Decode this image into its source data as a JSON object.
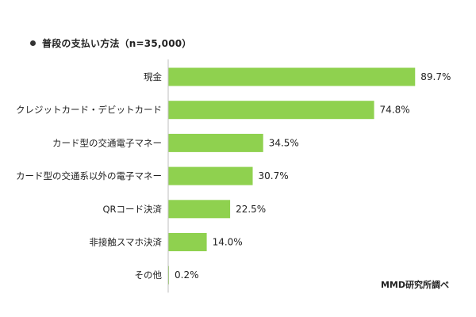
{
  "chart_data": {
    "type": "bar",
    "orientation": "horizontal",
    "title": "普段の支払い方法（n=35,000）",
    "categories": [
      "現金",
      "クレジットカード・デビットカード",
      "カード型の交通電子マネー",
      "カード型の交通系以外の電子マネー",
      "QRコード決済",
      "非接触スマホ決済",
      "その他"
    ],
    "values": [
      89.7,
      74.8,
      34.5,
      30.7,
      22.5,
      14.0,
      0.2
    ],
    "value_labels": [
      "89.7%",
      "74.8%",
      "34.5%",
      "30.7%",
      "22.5%",
      "14.0%",
      "0.2%"
    ],
    "unit": "%",
    "xlim": [
      0,
      100
    ],
    "grid": false,
    "legend": "none",
    "bar_color": "#8fd14f"
  },
  "source_note": "MMD研究所調べ"
}
